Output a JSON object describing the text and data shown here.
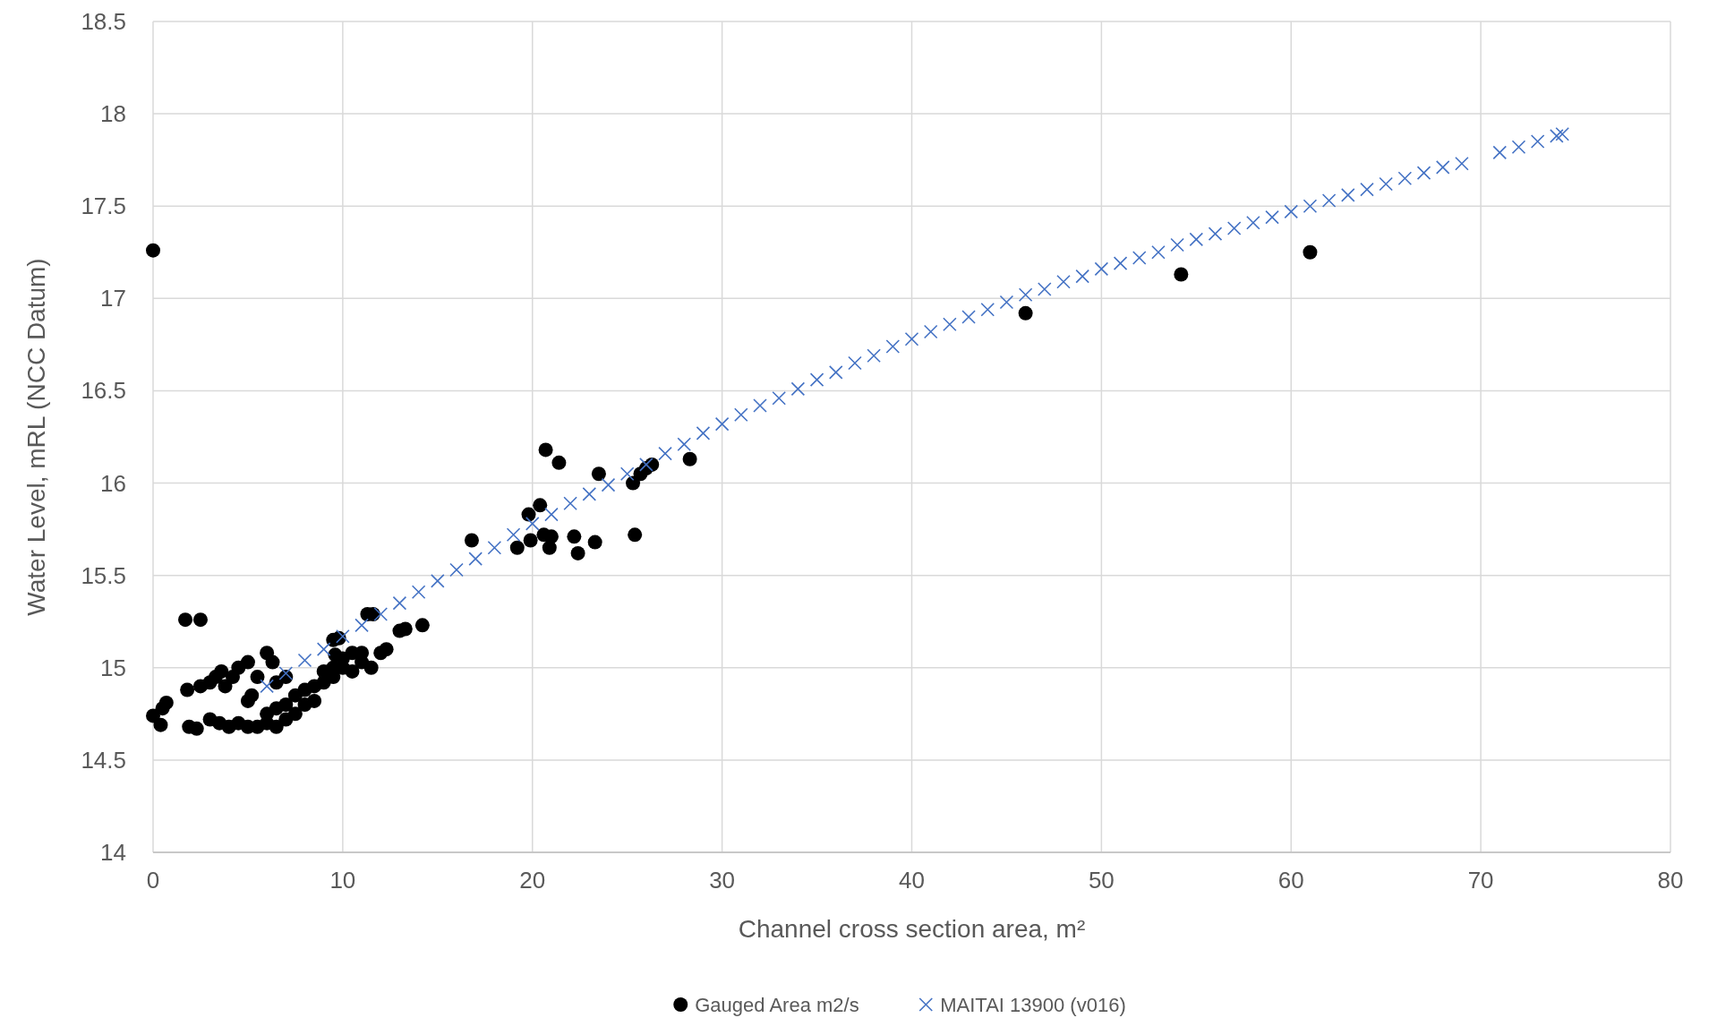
{
  "chart_data": {
    "type": "scatter",
    "xlabel": "Channel cross section area, m²",
    "ylabel": "Water Level, mRL (NCC Datum)",
    "xlim": [
      0,
      80
    ],
    "xticks": [
      0,
      10,
      20,
      30,
      40,
      50,
      60,
      70,
      80
    ],
    "ylim": [
      14,
      18.5
    ],
    "yticks": [
      14,
      14.5,
      15,
      15.5,
      16,
      16.5,
      17,
      17.5,
      18,
      18.5
    ],
    "grid": true,
    "legend": "bottom",
    "series": [
      {
        "name": "Gauged Area m2/s",
        "color": "#000000",
        "marker": "circle",
        "x": [
          0,
          0,
          0.4,
          0.5,
          0.7,
          1.7,
          2.5,
          1.8,
          1.9,
          2.3,
          2.5,
          3,
          3.3,
          3.6,
          3.8,
          4.2,
          4.5,
          5,
          5.5,
          6,
          6.3,
          5.2,
          5,
          6.5,
          7,
          3,
          3.5,
          4,
          4.5,
          5,
          5.5,
          6,
          6.5,
          6,
          6.5,
          7,
          7,
          7.5,
          7.5,
          8,
          8,
          8.5,
          8.5,
          9,
          9,
          9.5,
          9.5,
          10,
          10,
          10.5,
          10.5,
          11,
          11,
          11.5,
          12,
          12.3,
          9.5,
          9.8,
          11.3,
          11.6,
          13,
          13.3,
          14.2,
          9.6,
          16.8,
          19.2,
          19.8,
          19.9,
          20.4,
          20.6,
          20.9,
          21,
          20.7,
          21.4,
          22.2,
          22.4,
          23.3,
          23.5,
          25.3,
          25.4,
          25.7,
          26,
          26.3,
          28.3,
          46,
          54.2,
          61
        ],
        "values": [
          17.26,
          14.74,
          14.69,
          14.78,
          14.81,
          15.26,
          15.26,
          14.88,
          14.68,
          14.67,
          14.9,
          14.92,
          14.95,
          14.98,
          14.9,
          14.95,
          15,
          15.03,
          14.95,
          15.08,
          15.03,
          14.85,
          14.82,
          14.92,
          14.95,
          14.72,
          14.7,
          14.68,
          14.7,
          14.68,
          14.68,
          14.7,
          14.68,
          14.75,
          14.78,
          14.8,
          14.72,
          14.75,
          14.85,
          14.8,
          14.88,
          14.82,
          14.9,
          14.92,
          14.98,
          15,
          14.95,
          15,
          15.05,
          15.08,
          14.98,
          15.03,
          15.08,
          15,
          15.08,
          15.1,
          15.15,
          15.16,
          15.29,
          15.29,
          15.2,
          15.21,
          15.23,
          15.07,
          15.69,
          15.65,
          15.83,
          15.69,
          15.88,
          15.72,
          15.65,
          15.71,
          16.18,
          16.11,
          15.71,
          15.62,
          15.68,
          16.05,
          16,
          15.72,
          16.05,
          16.08,
          16.1,
          16.13,
          16.92,
          17.13,
          17.25
        ]
      },
      {
        "name": "MAITAI 13900 (v016)",
        "color": "#4472c4",
        "marker": "cross",
        "x": [
          6,
          7,
          8,
          9,
          10,
          11,
          12,
          13,
          14,
          15,
          16,
          17,
          18,
          19,
          20,
          21,
          22,
          23,
          24,
          25,
          26,
          27,
          28,
          29,
          30,
          31,
          32,
          33,
          34,
          35,
          36,
          37,
          38,
          39,
          40,
          41,
          42,
          43,
          44,
          45,
          46,
          47,
          48,
          49,
          50,
          51,
          52,
          53,
          54,
          55,
          56,
          57,
          58,
          59,
          60,
          61,
          62,
          63,
          64,
          65,
          66,
          67,
          68,
          69,
          71,
          72,
          73,
          74,
          74.3
        ],
        "values": [
          14.9,
          14.97,
          15.04,
          15.1,
          15.17,
          15.23,
          15.29,
          15.35,
          15.41,
          15.47,
          15.53,
          15.59,
          15.65,
          15.72,
          15.78,
          15.83,
          15.89,
          15.94,
          15.99,
          16.05,
          16.1,
          16.16,
          16.21,
          16.27,
          16.32,
          16.37,
          16.42,
          16.46,
          16.51,
          16.56,
          16.6,
          16.65,
          16.69,
          16.74,
          16.78,
          16.82,
          16.86,
          16.9,
          16.94,
          16.98,
          17.02,
          17.05,
          17.09,
          17.12,
          17.16,
          17.19,
          17.22,
          17.25,
          17.29,
          17.32,
          17.35,
          17.38,
          17.41,
          17.44,
          17.47,
          17.5,
          17.53,
          17.56,
          17.59,
          17.62,
          17.65,
          17.68,
          17.71,
          17.73,
          17.79,
          17.82,
          17.85,
          17.88,
          17.89
        ]
      }
    ]
  }
}
